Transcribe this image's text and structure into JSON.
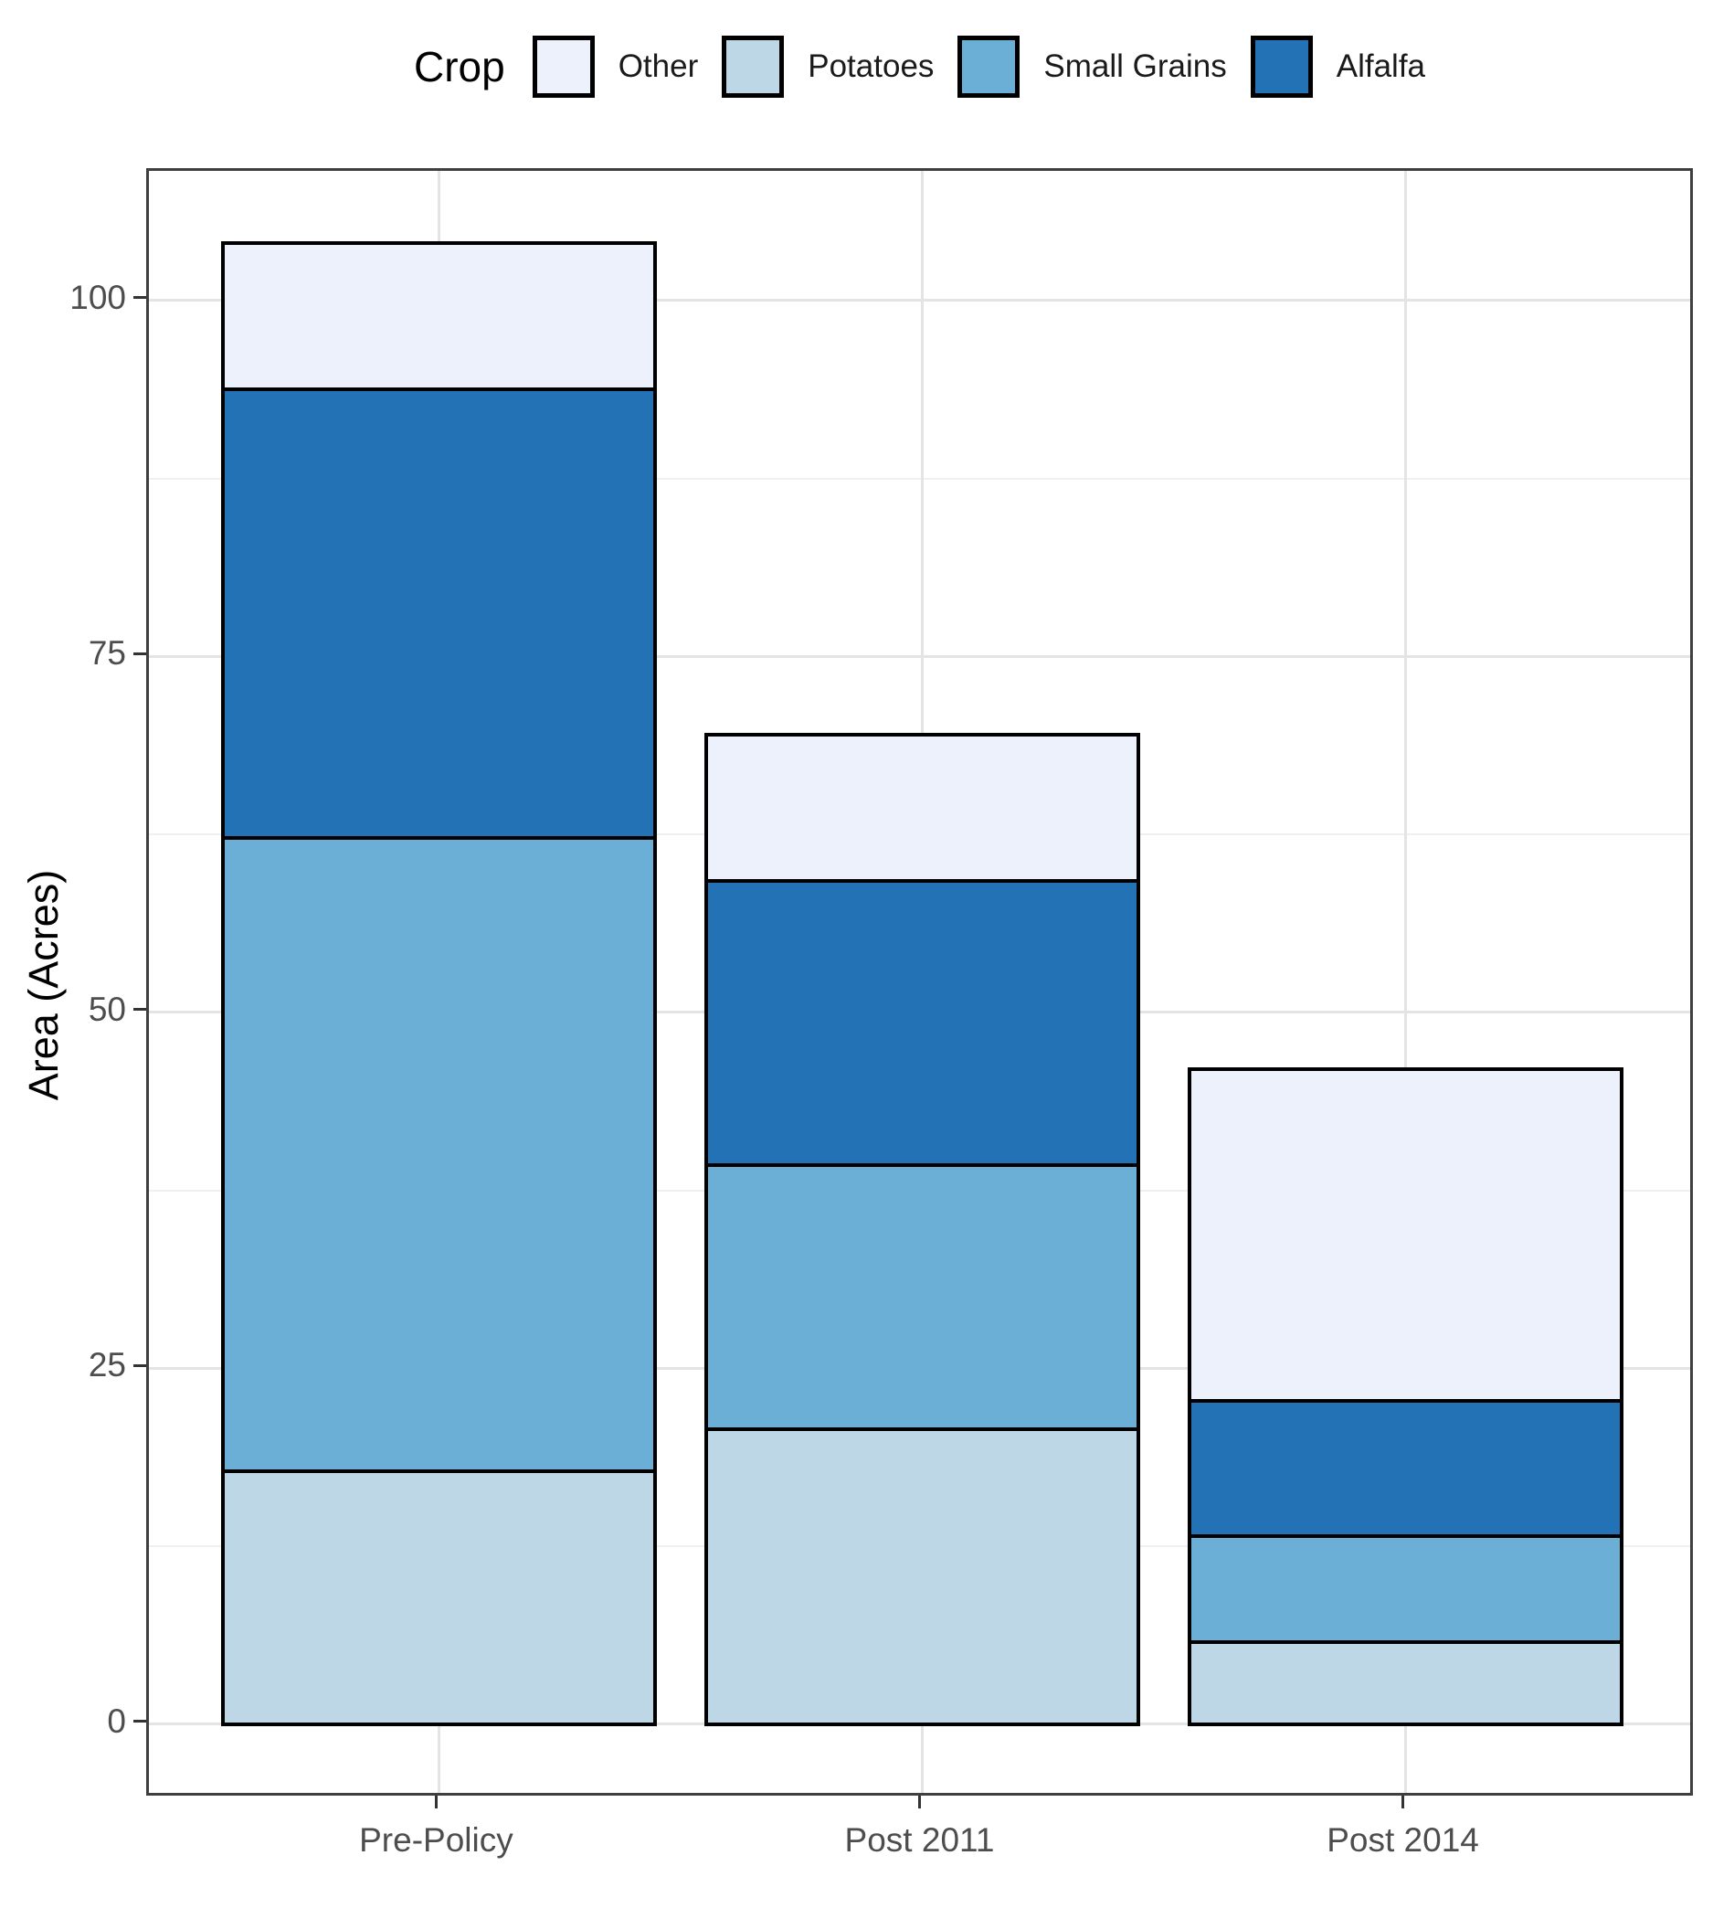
{
  "chart_data": {
    "type": "bar",
    "stacked": true,
    "title": "",
    "legend_title": "Crop",
    "xlabel": "",
    "ylabel": "Area (Acres)",
    "categories": [
      "Pre-Policy",
      "Post 2011",
      "Post 2014"
    ],
    "series": [
      {
        "name": "Potatoes",
        "color": "#BDD7E7",
        "values": [
          18.0,
          21.0,
          6.0
        ]
      },
      {
        "name": "Small Grains",
        "color": "#6BAED6",
        "values": [
          44.5,
          18.5,
          7.5
        ]
      },
      {
        "name": "Alfalfa",
        "color": "#2272B5",
        "values": [
          31.5,
          20.0,
          9.5
        ]
      },
      {
        "name": "Other",
        "color": "#EDF1FC",
        "values": [
          10.0,
          10.0,
          23.0
        ]
      }
    ],
    "stack_order_bottom_to_top": [
      "Potatoes",
      "Small Grains",
      "Alfalfa",
      "Other"
    ],
    "legend_order": [
      "Other",
      "Potatoes",
      "Small Grains",
      "Alfalfa"
    ],
    "totals": [
      104,
      69.5,
      46
    ],
    "y_ticks": [
      0,
      25,
      50,
      75,
      100
    ],
    "y_minor_gridlines": [
      12.5,
      37.5,
      62.5,
      87.5
    ],
    "ylim": [
      -5.2,
      109.1
    ],
    "grid": true,
    "legend_position": "top",
    "colors": {
      "bar_outline": "#000000",
      "panel_border": "#3f3f3f",
      "grid_major": "#e4e4e4",
      "grid_minor": "#f0f0f0",
      "tick_mark": "#333333",
      "tick_label": "#4d4d4d",
      "axis_title": "#000000"
    }
  }
}
